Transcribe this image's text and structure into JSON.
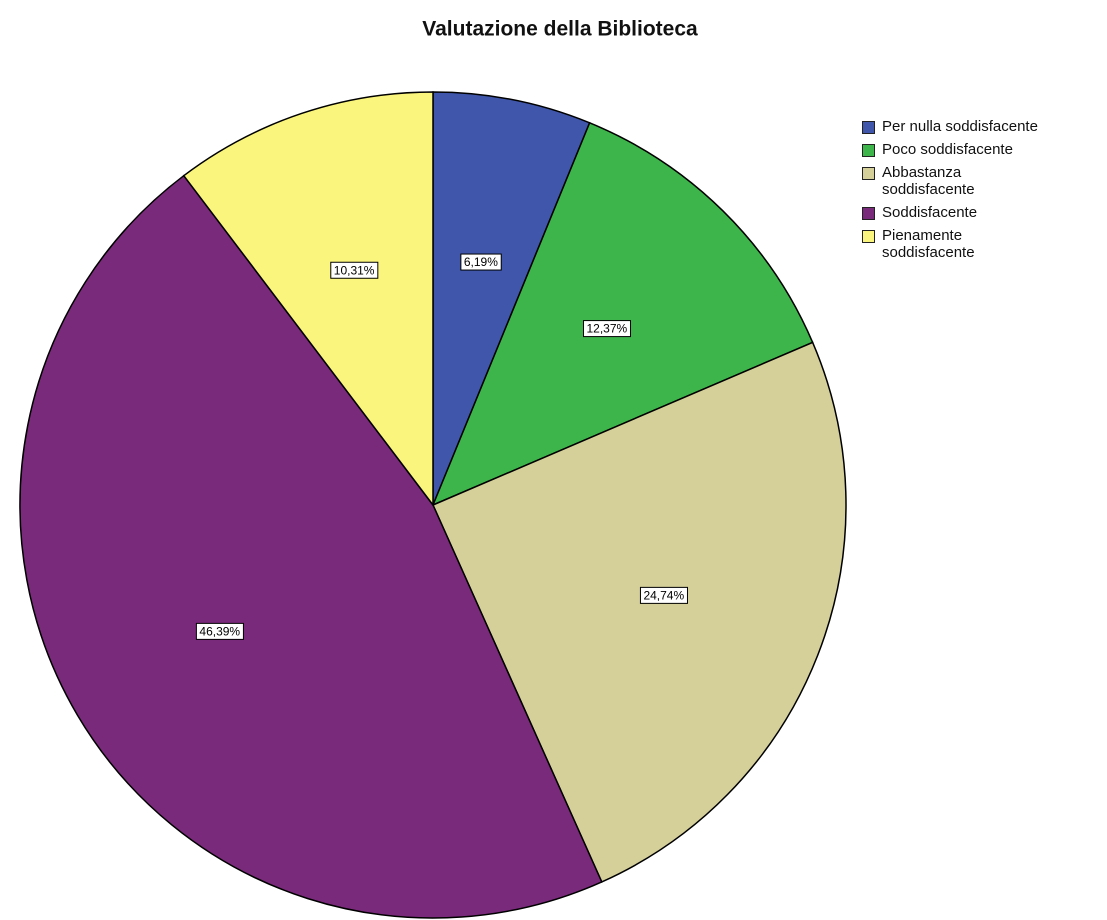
{
  "chart_data": {
    "type": "pie",
    "title": "Valutazione della Biblioteca",
    "categories": [
      "Per nulla soddisfacente",
      "Poco soddisfacente",
      "Abbastanza soddisfacente",
      "Soddisfacente",
      "Pienamente soddisfacente"
    ],
    "values": [
      6.19,
      12.37,
      24.74,
      46.39,
      10.31
    ],
    "value_labels": [
      "6,19%",
      "12,37%",
      "24,74%",
      "46,39%",
      "10,31%"
    ],
    "colors": [
      "#3f56ab",
      "#3db54a",
      "#d5cf99",
      "#7a2a7a",
      "#faf57c"
    ],
    "legend": "top-right"
  }
}
